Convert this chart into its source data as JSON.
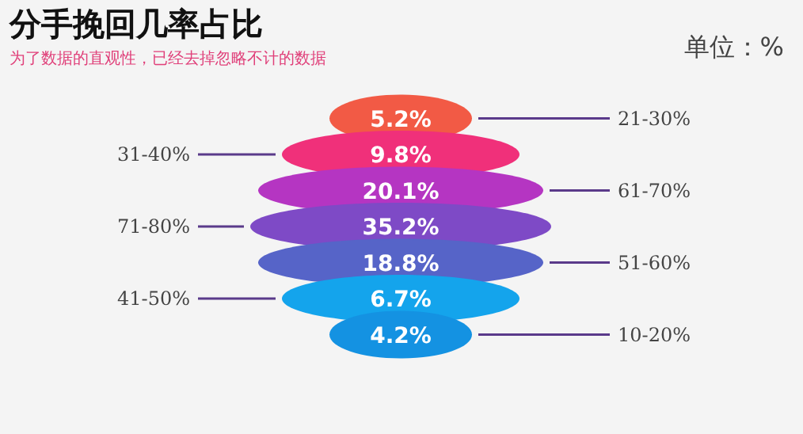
{
  "chart_data": {
    "type": "other",
    "title": "分手挽回几率占比",
    "subtitle": "为了数据的直观性，已经去掉忽略不计的数据",
    "annotations": [
      "单位：%"
    ],
    "categories": [
      "21-30%",
      "31-40%",
      "61-70%",
      "71-80%",
      "51-60%",
      "41-50%",
      "10-20%"
    ],
    "values": [
      5.2,
      9.8,
      20.1,
      35.2,
      18.8,
      6.7,
      4.2
    ],
    "value_labels": [
      "5.2%",
      "9.8%",
      "20.1%",
      "35.2%",
      "18.8%",
      "6.7%",
      "4.2%"
    ],
    "colors": [
      "#f25a45",
      "#f0307a",
      "#b535c2",
      "#7e4ac6",
      "#5664c8",
      "#14a4ec",
      "#1492e2"
    ]
  }
}
